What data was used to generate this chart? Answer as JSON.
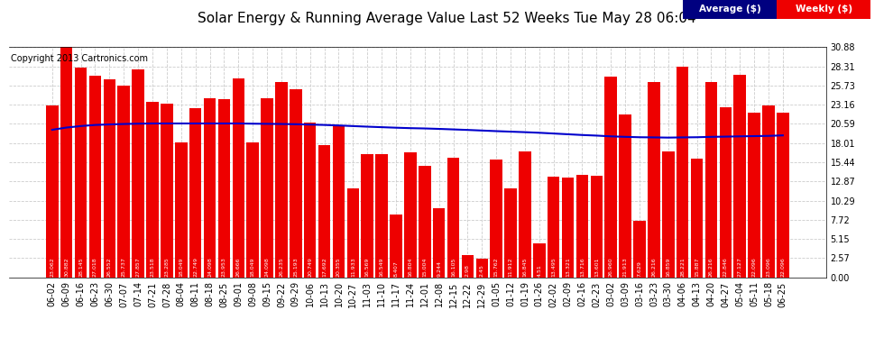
{
  "title": "Solar Energy & Running Average Value Last 52 Weeks Tue May 28 06:04",
  "copyright": "Copyright 2013 Cartronics.com",
  "bar_color": "#ee0000",
  "avg_line_color": "#0000cc",
  "background_color": "#ffffff",
  "grid_color": "#cccccc",
  "ylim": [
    0.0,
    30.88
  ],
  "yticks": [
    0.0,
    2.57,
    5.15,
    7.72,
    10.29,
    12.87,
    15.44,
    18.01,
    20.59,
    23.16,
    25.73,
    28.31,
    30.88
  ],
  "categories": [
    "06-02",
    "06-09",
    "06-16",
    "06-23",
    "06-30",
    "07-07",
    "07-14",
    "07-21",
    "07-28",
    "08-04",
    "08-11",
    "08-18",
    "08-25",
    "09-01",
    "09-08",
    "09-15",
    "09-22",
    "09-29",
    "10-06",
    "10-13",
    "10-20",
    "10-27",
    "11-03",
    "11-10",
    "11-17",
    "11-24",
    "12-01",
    "12-08",
    "12-15",
    "12-22",
    "12-29",
    "01-05",
    "01-12",
    "01-19",
    "01-26",
    "02-02",
    "02-09",
    "02-16",
    "02-23",
    "03-02",
    "03-09",
    "03-16",
    "03-23",
    "03-30",
    "04-06",
    "04-13",
    "04-20",
    "04-27",
    "05-04",
    "05-11",
    "05-18",
    "06-25"
  ],
  "weekly_values": [
    23.062,
    30.882,
    28.145,
    27.018,
    26.552,
    25.737,
    27.857,
    23.518,
    23.285,
    18.049,
    22.749,
    24.098,
    23.953,
    26.666,
    18.049,
    24.098,
    26.235,
    25.193,
    20.749,
    17.692,
    20.355,
    11.933,
    16.569,
    16.549,
    8.407,
    16.804,
    15.004,
    9.244,
    16.105,
    2.98,
    2.45,
    15.762,
    11.912,
    16.845,
    4.51,
    13.495,
    13.321,
    13.716,
    13.601,
    26.96,
    21.913,
    7.629,
    26.216,
    16.859,
    28.221,
    15.887,
    26.216,
    22.846,
    27.127,
    22.096,
    23.096,
    22.096
  ],
  "avg_values": [
    19.8,
    20.1,
    20.3,
    20.45,
    20.52,
    20.58,
    20.62,
    20.65,
    20.65,
    20.65,
    20.65,
    20.65,
    20.65,
    20.65,
    20.62,
    20.6,
    20.58,
    20.55,
    20.5,
    20.45,
    20.38,
    20.3,
    20.22,
    20.15,
    20.08,
    20.02,
    19.98,
    19.92,
    19.85,
    19.78,
    19.7,
    19.62,
    19.55,
    19.48,
    19.4,
    19.3,
    19.2,
    19.1,
    19.02,
    18.92,
    18.85,
    18.8,
    18.78,
    18.75,
    18.78,
    18.8,
    18.85,
    18.88,
    18.92,
    18.95,
    18.98,
    19.05
  ],
  "bar_labels": [
    "23.062",
    "30.882",
    "28.145",
    "27.018",
    "26.552",
    "25.737",
    "27.857",
    "23.518",
    "23.285",
    "18.049",
    "22.749",
    "24.098",
    "23.953",
    "26.666",
    "18.049",
    "24.098",
    "26.235",
    "25.193",
    "20.749",
    "17.692",
    "20.355",
    "11.933",
    "16.569",
    "16.549",
    "8.407",
    "16.804",
    "15.004",
    "9.244",
    "16.105",
    "2.98",
    "2.45",
    "15.762",
    "11.912",
    "16.845",
    "4.51",
    "13.495",
    "13.321",
    "13.716",
    "13.601",
    "26.960",
    "21.913",
    "7.629",
    "26.216",
    "16.859",
    "28.221",
    "15.887",
    "26.216",
    "22.846",
    "27.127",
    "22.096",
    "23.096",
    "22.096"
  ],
  "legend_avg_color": "#000080",
  "legend_weekly_color": "#ee0000",
  "legend_text_color": "#ffffff",
  "title_fontsize": 11,
  "tick_fontsize": 7,
  "bar_label_fontsize": 4.5,
  "copyright_fontsize": 7
}
